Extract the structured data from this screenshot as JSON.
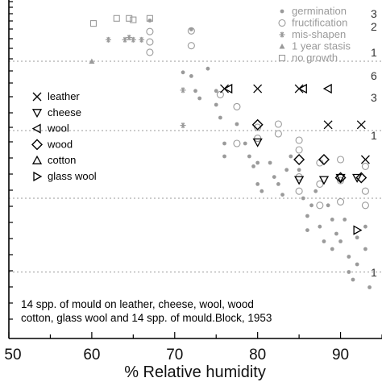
{
  "chart_data": {
    "type": "scatter",
    "title": "",
    "xlabel": "% Relative humidity",
    "ylabel": "",
    "xlim": [
      50,
      95
    ],
    "x_ticks": [
      50,
      60,
      70,
      80,
      90
    ],
    "y_levels": [
      5,
      4,
      3,
      2,
      1
    ],
    "y_band_lines": [
      4.5,
      3.5,
      2.5,
      1.5
    ],
    "right_labels": [
      "3",
      "2",
      "1",
      "6",
      "3",
      "1",
      "1"
    ],
    "colors": {
      "gray": "#9a9a9a",
      "black": "#000000"
    },
    "status_legend": [
      {
        "marker": "dot",
        "label": "germination"
      },
      {
        "marker": "open-circle",
        "label": "fructification"
      },
      {
        "marker": "asterisk",
        "label": "mis-shapen"
      },
      {
        "marker": "filled-triangle",
        "label": "1 year stasis"
      },
      {
        "marker": "open-square",
        "label": "no growth"
      }
    ],
    "material_legend": [
      {
        "marker": "x",
        "label": "leather"
      },
      {
        "marker": "triangle-down",
        "label": "cheese"
      },
      {
        "marker": "triangle-left",
        "label": "wool"
      },
      {
        "marker": "diamond",
        "label": "wood"
      },
      {
        "marker": "triangle-up",
        "label": "cotton"
      },
      {
        "marker": "triangle-right",
        "label": "glass wool"
      }
    ],
    "note_lines": [
      "14 spp. of mould on leather, cheese, wool, wood",
      "cotton, glass wool and 14 spp. of mould.Block, 1953"
    ],
    "series": [
      {
        "marker": "square",
        "points": [
          [
            60.2,
            5.01
          ],
          [
            63,
            5.08
          ],
          [
            64.5,
            5.08
          ],
          [
            65,
            5.06
          ],
          [
            67,
            5.08
          ]
        ]
      },
      {
        "marker": "asterisk",
        "points": [
          [
            62,
            4.79
          ],
          [
            64,
            4.79
          ],
          [
            64.5,
            4.82
          ],
          [
            65,
            4.79
          ],
          [
            66,
            4.79
          ],
          [
            71,
            4.11
          ],
          [
            71,
            3.58
          ]
        ]
      },
      {
        "marker": "filled-triangle",
        "points": [
          [
            60,
            4.5
          ]
        ]
      },
      {
        "marker": "circle",
        "points": [
          [
            67,
            4.9
          ],
          [
            67,
            4.76
          ],
          [
            67,
            4.62
          ],
          [
            72,
            4.91
          ],
          [
            72,
            4.71
          ],
          [
            75.5,
            4.05
          ],
          [
            77.5,
            3.87
          ],
          [
            77.5,
            3.3
          ],
          [
            80,
            3.55
          ],
          [
            80,
            3.38
          ],
          [
            82.5,
            3.6
          ],
          [
            82.5,
            3.45
          ],
          [
            85,
            3.35
          ],
          [
            85,
            3.2
          ],
          [
            85,
            2.6
          ],
          [
            85,
            2.8
          ],
          [
            87.5,
            3.0
          ],
          [
            87.5,
            2.7
          ],
          [
            87.5,
            2.4
          ],
          [
            90,
            3.05
          ],
          [
            90,
            2.75
          ],
          [
            90,
            2.45
          ],
          [
            93,
            2.95
          ],
          [
            93,
            2.6
          ],
          [
            93,
            2.4
          ]
        ]
      },
      {
        "marker": "dot",
        "points": [
          [
            67,
            5.05
          ],
          [
            72,
            4.93
          ],
          [
            71,
            4.35
          ],
          [
            72,
            4.3
          ],
          [
            72.5,
            4.1
          ],
          [
            73,
            4.0
          ],
          [
            74,
            4.4
          ],
          [
            75,
            4.1
          ],
          [
            75,
            3.9
          ],
          [
            75.5,
            3.7
          ],
          [
            76,
            3.3
          ],
          [
            76,
            3.1
          ],
          [
            77.5,
            3.6
          ],
          [
            78.5,
            3.3
          ],
          [
            79,
            3.1
          ],
          [
            79.5,
            2.95
          ],
          [
            80,
            3.0
          ],
          [
            80,
            2.7
          ],
          [
            80.5,
            2.6
          ],
          [
            81.5,
            3.0
          ],
          [
            82,
            2.8
          ],
          [
            82.5,
            2.7
          ],
          [
            83,
            2.55
          ],
          [
            83.5,
            2.9
          ],
          [
            84,
            3.1
          ],
          [
            85,
            2.9
          ],
          [
            85.5,
            2.5
          ],
          [
            86,
            2.25
          ],
          [
            86,
            2.05
          ],
          [
            86.5,
            2.4
          ],
          [
            87,
            2.6
          ],
          [
            87.5,
            2.1
          ],
          [
            88,
            1.9
          ],
          [
            88.5,
            2.4
          ],
          [
            89,
            2.2
          ],
          [
            89,
            1.8
          ],
          [
            89.5,
            2.0
          ],
          [
            90,
            1.9
          ],
          [
            90.5,
            2.2
          ],
          [
            91,
            1.7
          ],
          [
            91,
            1.5
          ],
          [
            91.5,
            1.4
          ],
          [
            92,
            1.95
          ],
          [
            92,
            1.6
          ],
          [
            93,
            2.1
          ],
          [
            93,
            1.8
          ],
          [
            93.5,
            1.3
          ]
        ]
      },
      {
        "marker": "x",
        "points": [
          [
            76,
            4.13
          ],
          [
            80,
            4.13
          ],
          [
            85,
            4.13
          ],
          [
            88.5,
            3.59
          ],
          [
            92.5,
            3.59
          ],
          [
            93,
            3.05
          ]
        ]
      },
      {
        "marker": "triangle-left",
        "points": [
          [
            76.5,
            4.13
          ],
          [
            85.5,
            4.13
          ],
          [
            88.5,
            4.13
          ]
        ]
      },
      {
        "marker": "diamond",
        "points": [
          [
            80,
            3.59
          ],
          [
            85,
            3.05
          ],
          [
            88,
            3.05
          ],
          [
            90,
            2.79
          ],
          [
            92.5,
            2.79
          ]
        ]
      },
      {
        "marker": "triangle-down",
        "points": [
          [
            80,
            3.32
          ],
          [
            85,
            2.76
          ],
          [
            88,
            2.76
          ],
          [
            90,
            2.79
          ],
          [
            92,
            2.79
          ]
        ]
      },
      {
        "marker": "triangle-right",
        "points": [
          [
            92,
            2.05
          ]
        ]
      }
    ]
  }
}
